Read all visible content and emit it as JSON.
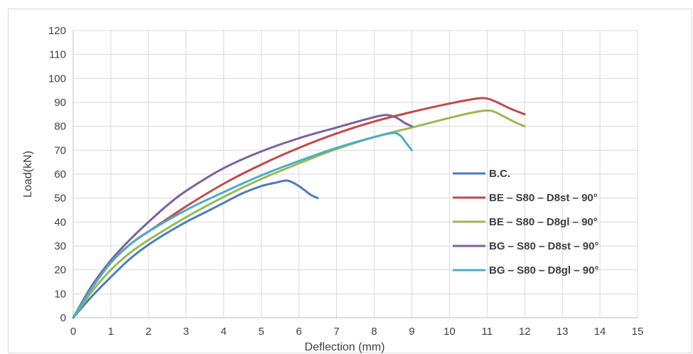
{
  "chart_data": {
    "type": "line",
    "title": "",
    "xlabel": "Deflection (mm)",
    "ylabel": "Load(kN)",
    "xlim": [
      0,
      15
    ],
    "ylim": [
      0,
      120
    ],
    "x_ticks": [
      "0",
      "1",
      "2",
      "3",
      "4",
      "5",
      "6",
      "7",
      "8",
      "9",
      "10",
      "11",
      "12",
      "13",
      "14",
      "15"
    ],
    "y_ticks": [
      "0",
      "10",
      "20",
      "30",
      "40",
      "50",
      "60",
      "70",
      "80",
      "90",
      "100",
      "110",
      "120"
    ],
    "grid": true,
    "legend_position": "right",
    "series": [
      {
        "name": "B.C.",
        "color": "#4a7ebb",
        "points": [
          [
            0,
            0
          ],
          [
            0.5,
            9
          ],
          [
            1,
            17
          ],
          [
            1.5,
            24.5
          ],
          [
            2,
            30.5
          ],
          [
            2.5,
            35.5
          ],
          [
            3,
            40
          ],
          [
            3.5,
            44
          ],
          [
            4,
            48
          ],
          [
            4.5,
            52
          ],
          [
            5,
            55
          ],
          [
            5.4,
            56.5
          ],
          [
            5.7,
            57.3
          ],
          [
            6,
            55
          ],
          [
            6.3,
            51.5
          ],
          [
            6.5,
            50
          ]
        ]
      },
      {
        "name": "BE – S80 – D8st – 90°",
        "color": "#be4b48",
        "points": [
          [
            0,
            0
          ],
          [
            0.5,
            12.5
          ],
          [
            1,
            23
          ],
          [
            1.5,
            30.5
          ],
          [
            2,
            36
          ],
          [
            3,
            46.5
          ],
          [
            4,
            56
          ],
          [
            5,
            64
          ],
          [
            6,
            71
          ],
          [
            7,
            77
          ],
          [
            8,
            82
          ],
          [
            9,
            86
          ],
          [
            10,
            89.5
          ],
          [
            10.5,
            91
          ],
          [
            10.9,
            91.8
          ],
          [
            11.2,
            90.5
          ],
          [
            11.6,
            87.5
          ],
          [
            12,
            85
          ]
        ]
      },
      {
        "name": "BE – S80 – D8gl – 90°",
        "color": "#98b954",
        "points": [
          [
            0,
            0
          ],
          [
            0.5,
            11
          ],
          [
            1,
            20
          ],
          [
            1.5,
            27
          ],
          [
            2,
            32.5
          ],
          [
            3,
            42
          ],
          [
            4,
            50.5
          ],
          [
            5,
            58
          ],
          [
            6,
            64.5
          ],
          [
            7,
            70.5
          ],
          [
            8,
            75.5
          ],
          [
            9,
            79.5
          ],
          [
            10,
            83.5
          ],
          [
            10.7,
            86
          ],
          [
            11.1,
            86.5
          ],
          [
            11.4,
            84.5
          ],
          [
            11.7,
            82
          ],
          [
            12,
            80
          ]
        ]
      },
      {
        "name": "BG – S80 – D8st – 90°",
        "color": "#7d60a0",
        "points": [
          [
            0,
            0
          ],
          [
            0.5,
            13.5
          ],
          [
            1,
            24
          ],
          [
            1.5,
            32.5
          ],
          [
            2,
            40
          ],
          [
            2.5,
            47
          ],
          [
            3,
            53
          ],
          [
            4,
            62.5
          ],
          [
            5,
            69.5
          ],
          [
            6,
            75
          ],
          [
            7,
            79.5
          ],
          [
            7.8,
            83
          ],
          [
            8.3,
            84.7
          ],
          [
            8.6,
            83.5
          ],
          [
            8.8,
            81.5
          ],
          [
            9,
            80
          ]
        ]
      },
      {
        "name": "BG – S80 – D8gl – 90°",
        "color": "#4bacc6",
        "points": [
          [
            0,
            0
          ],
          [
            0.5,
            12.5
          ],
          [
            1,
            23
          ],
          [
            1.5,
            30.5
          ],
          [
            2,
            36
          ],
          [
            3,
            45
          ],
          [
            4,
            52.5
          ],
          [
            5,
            59.5
          ],
          [
            6,
            65.5
          ],
          [
            7,
            71
          ],
          [
            8,
            75.5
          ],
          [
            8.5,
            77.2
          ],
          [
            8.7,
            76
          ],
          [
            8.85,
            73
          ],
          [
            9,
            70
          ]
        ]
      }
    ]
  }
}
